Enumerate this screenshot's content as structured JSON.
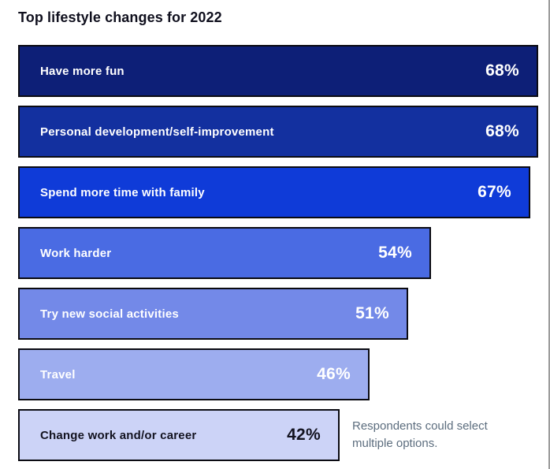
{
  "title": "Top lifestyle changes for 2022",
  "note": "Respondents could select multiple options.",
  "chart_data": {
    "type": "bar",
    "orientation": "horizontal",
    "title": "Top lifestyle changes for 2022",
    "categories": [
      "Have more fun",
      "Personal development/self-improvement",
      "Spend more time with family",
      "Work harder",
      "Try new social activities",
      "Travel",
      "Change work and/or career"
    ],
    "values": [
      68,
      68,
      67,
      54,
      51,
      46,
      42
    ],
    "value_labels": [
      "68%",
      "68%",
      "67%",
      "54%",
      "51%",
      "46%",
      "42%"
    ],
    "unit": "%",
    "xlim": [
      0,
      68
    ],
    "grid": false,
    "legend": false,
    "bar_colors": [
      "#0d1f77",
      "#13309f",
      "#0f3bd8",
      "#4a6be3",
      "#7389e8",
      "#9dadef",
      "#ccd3f7"
    ],
    "text_colors": [
      "#ffffff",
      "#ffffff",
      "#ffffff",
      "#ffffff",
      "#ffffff",
      "#ffffff",
      "#131320"
    ],
    "border_color": "#0b0b12",
    "annotations": [
      "Respondents could select multiple options."
    ]
  }
}
